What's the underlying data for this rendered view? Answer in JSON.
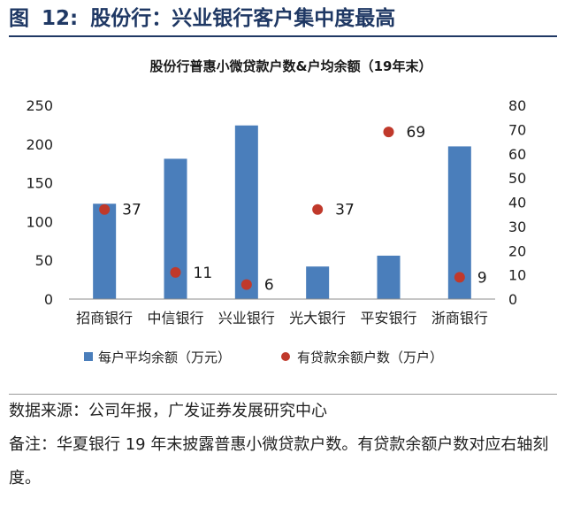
{
  "figure": {
    "label": "图",
    "number": "12:",
    "title": "股份行：兴业银行客户集中度最高"
  },
  "notes": {
    "source": "数据来源：公司年报，广发证券发展研究中心",
    "note": "备注：华夏银行 19 年末披露普惠小微贷款户数。有贷款余额户数对应右轴刻度。"
  },
  "chart_data": {
    "type": "bar",
    "title": "股份行普惠小微贷款户数&户均余额（19年末）",
    "categories": [
      "招商银行",
      "中信银行",
      "兴业银行",
      "光大银行",
      "平安银行",
      "浙商银行"
    ],
    "series": [
      {
        "name": "每户平均余额（万元）",
        "kind": "bar",
        "axis": "left",
        "color": "#4a7ebb",
        "values": [
          123,
          181,
          224,
          42,
          56,
          197
        ]
      },
      {
        "name": "有贷款余额户数（万户）",
        "kind": "scatter",
        "axis": "right",
        "color": "#c0392b",
        "values": [
          37,
          11,
          6,
          37,
          69,
          9
        ],
        "data_labels": [
          "37",
          "11",
          "6",
          "37",
          "69",
          "9"
        ]
      }
    ],
    "y_left": {
      "min": 0,
      "max": 250,
      "ticks": [
        0,
        50,
        100,
        150,
        200,
        250
      ]
    },
    "y_right": {
      "min": 0,
      "max": 80,
      "ticks": [
        0,
        10,
        20,
        30,
        40,
        50,
        60,
        70,
        80
      ]
    },
    "grid": false,
    "legend": "bottom"
  }
}
